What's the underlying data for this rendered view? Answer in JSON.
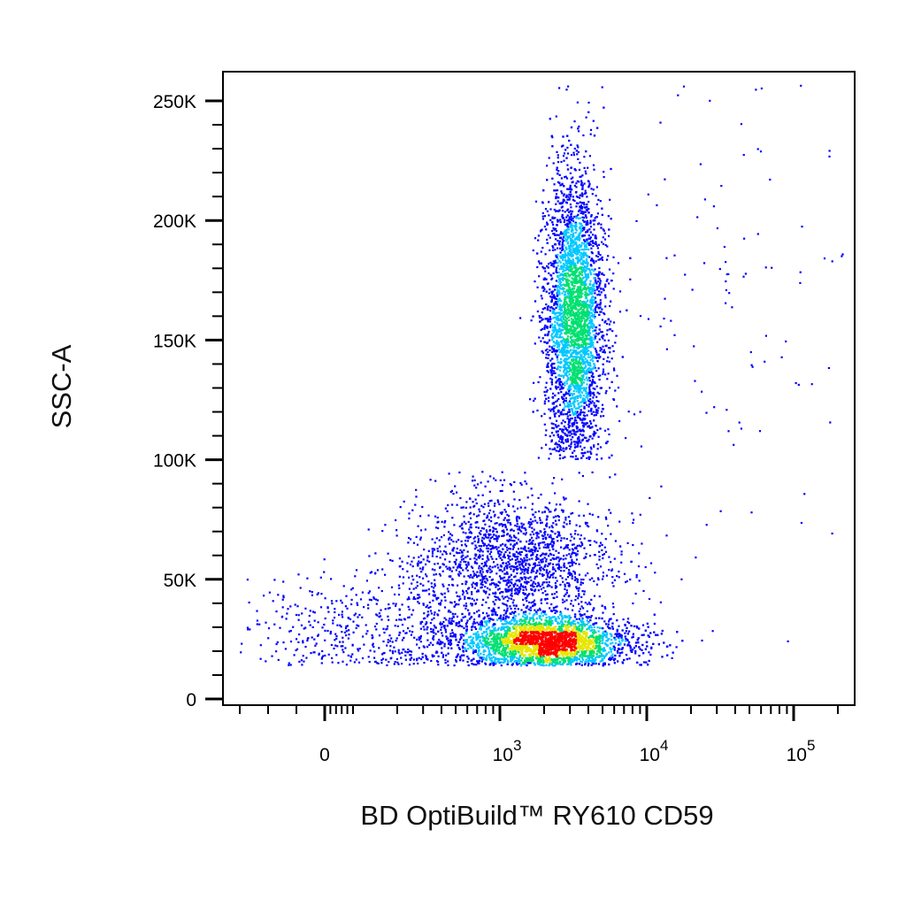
{
  "chart_data": {
    "type": "scatter",
    "title": "",
    "xlabel": "BD OptiBuild™ RY610 CD59",
    "ylabel": "SSC-A",
    "x_scale": "biexponential",
    "y_scale": "linear",
    "xlim": [
      -300,
      200000
    ],
    "ylim": [
      -2000,
      262144
    ],
    "grid": false,
    "legend": "none",
    "x_tick_labels": [
      {
        "value": 0,
        "base": "0",
        "exp": ""
      },
      {
        "value": 1000,
        "base": "10",
        "exp": "3"
      },
      {
        "value": 10000,
        "base": "10",
        "exp": "4"
      },
      {
        "value": 100000,
        "base": "10",
        "exp": "5"
      }
    ],
    "y_ticks": [
      0,
      50000,
      100000,
      150000,
      200000,
      250000
    ],
    "y_tick_labels": [
      "0",
      "50K",
      "100K",
      "150K",
      "200K",
      "250K"
    ],
    "density_colors": [
      "#0000ff",
      "#00c8ff",
      "#00e070",
      "#e6e600",
      "#ff0000"
    ],
    "populations": [
      {
        "center_x": 3200,
        "center_y": 160000,
        "sd_log_x": 0.1,
        "sd_y": 30000,
        "y_range": [
          100000,
          258000
        ],
        "share": 0.38
      },
      {
        "center_x": 2000,
        "center_y": 24000,
        "sd_log_x": 0.3,
        "sd_y": 5500,
        "y_range": [
          14000,
          45000
        ],
        "share": 0.4
      },
      {
        "center_x": 1200,
        "center_y": 58000,
        "sd_log_x": 0.35,
        "sd_y": 14000,
        "y_range": [
          30000,
          95000
        ],
        "share": 0.16
      },
      {
        "center_x": 30000,
        "center_y": 150000,
        "sd_log_x": 0.45,
        "sd_y": 60000,
        "y_range": [
          20000,
          258000
        ],
        "share": 0.01
      },
      {
        "center_x": 150,
        "center_y": 30000,
        "sd_log_x": 0.3,
        "sd_y": 12000,
        "y_range": [
          14000,
          60000
        ],
        "share": 0.05
      }
    ]
  }
}
